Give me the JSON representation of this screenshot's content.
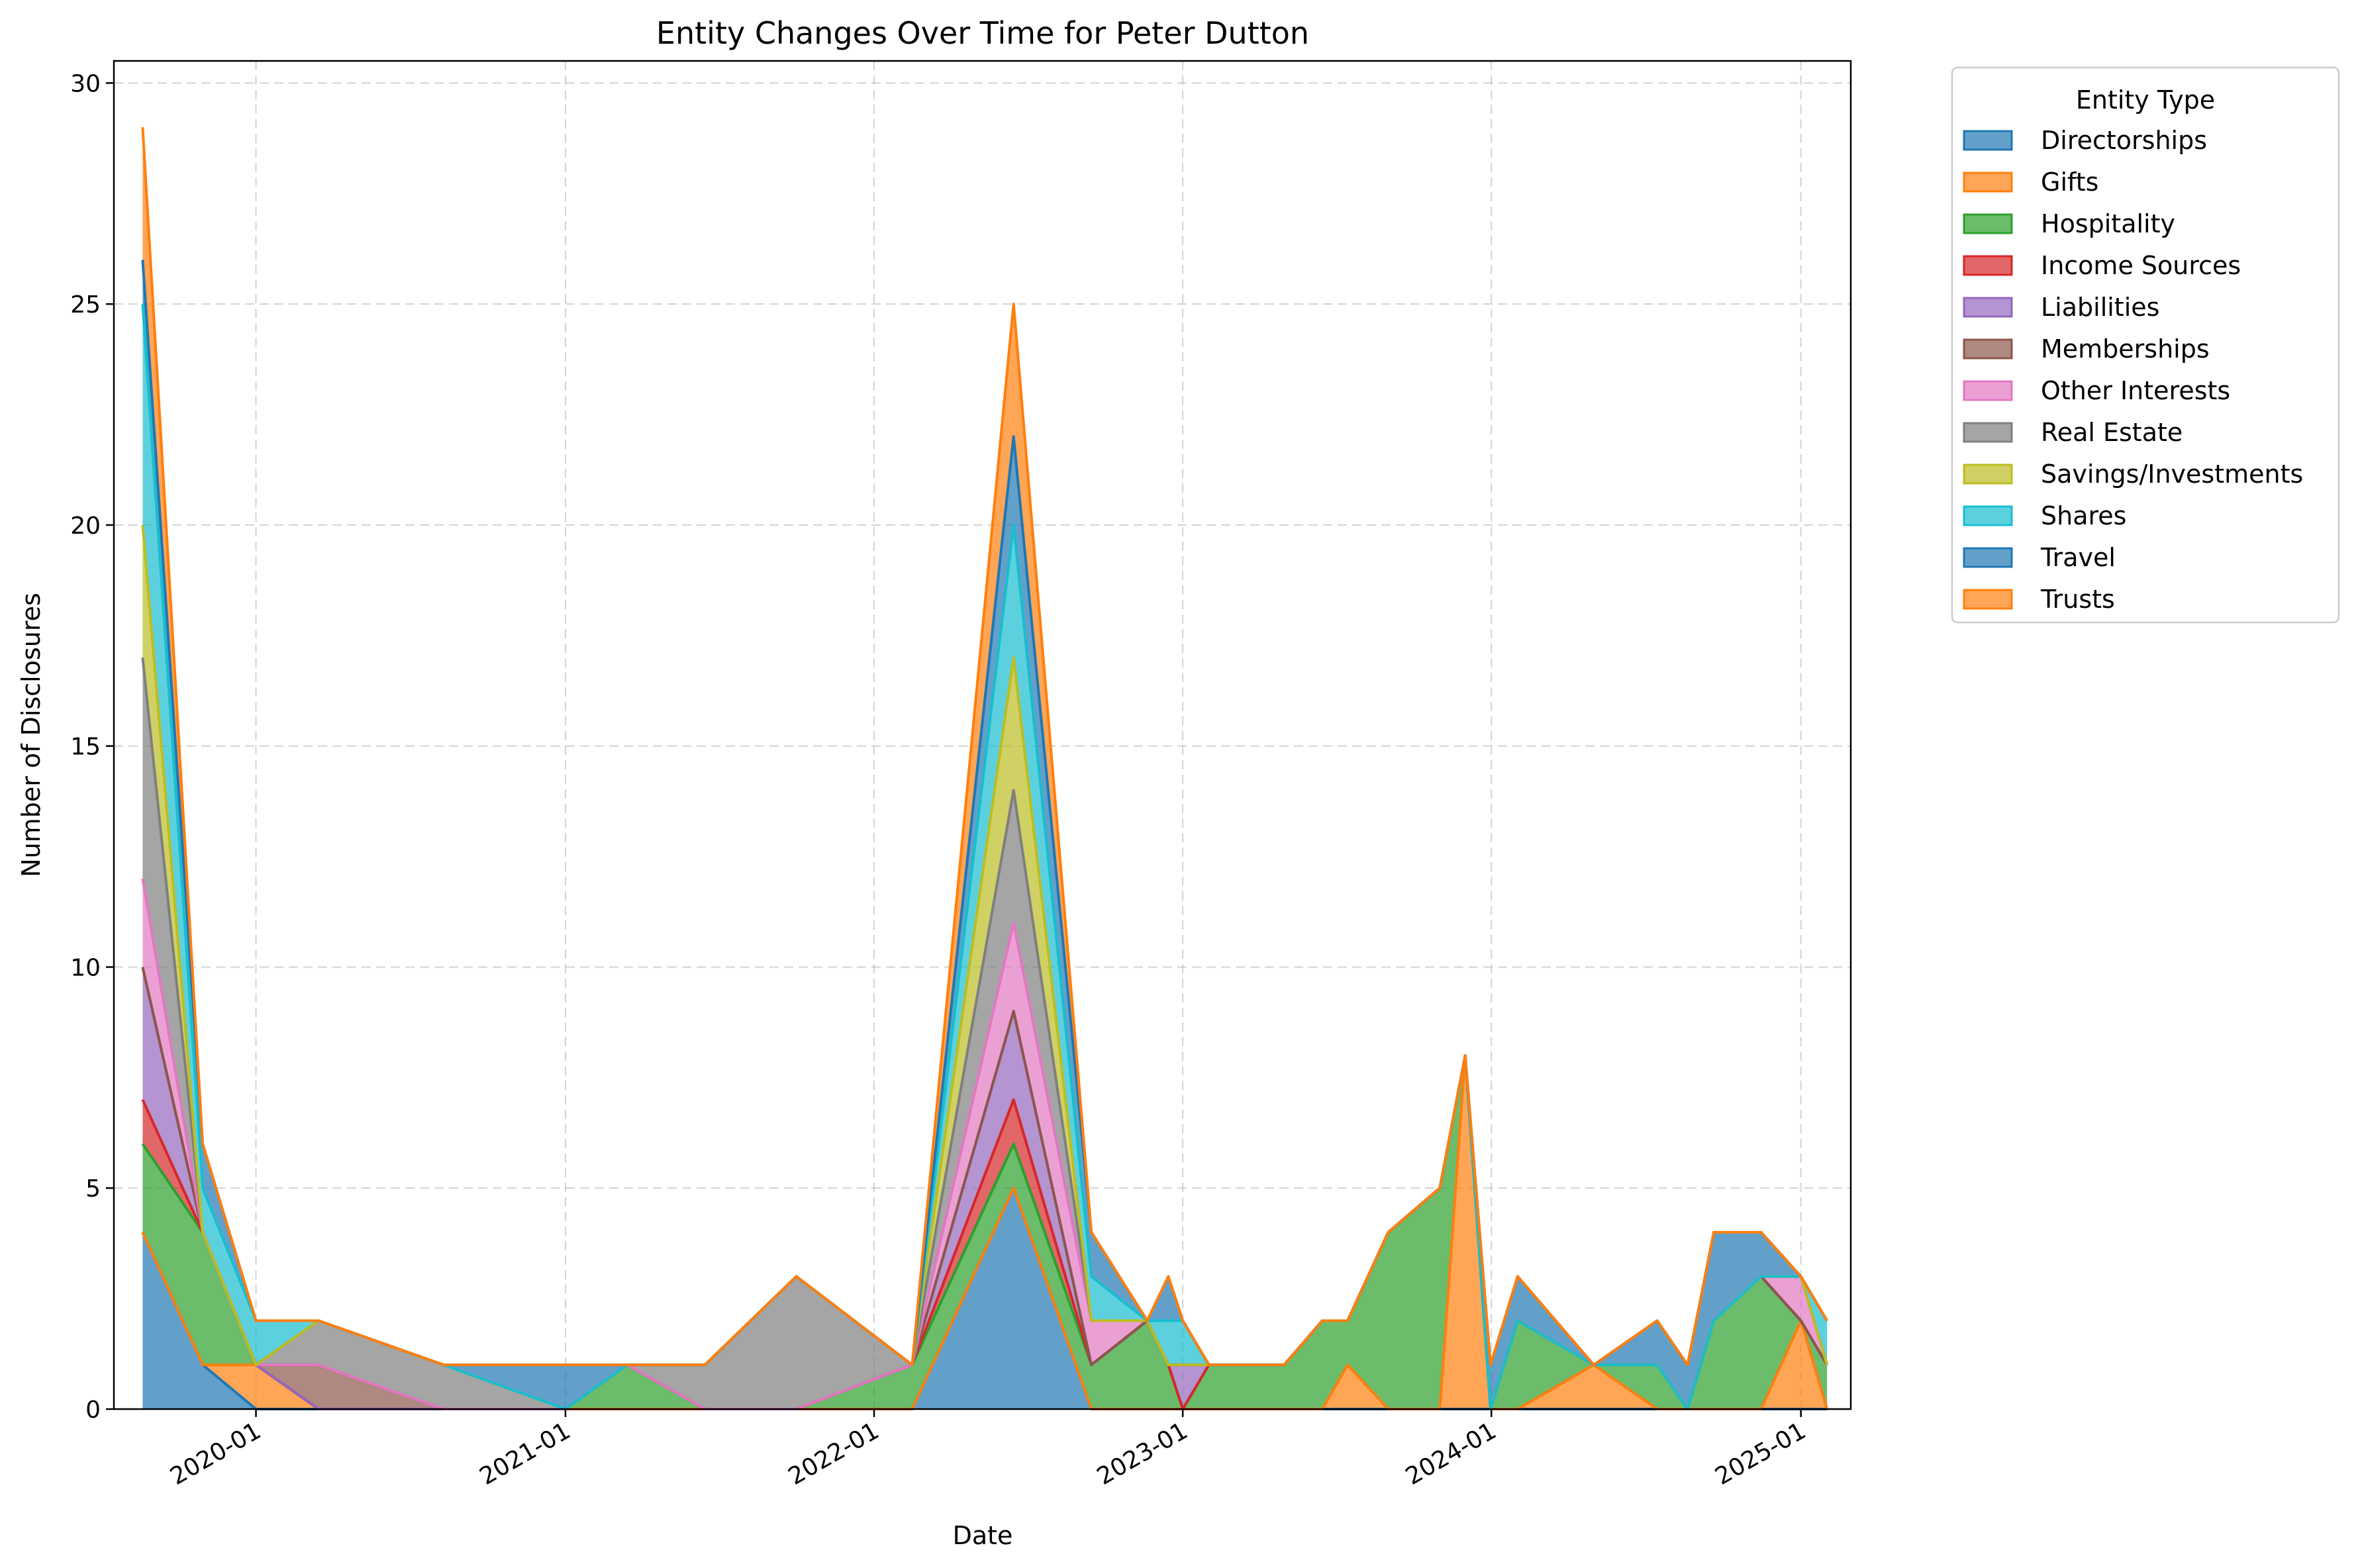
{
  "chart_data": {
    "type": "area",
    "stacked": true,
    "title": "Entity Changes Over Time for Peter Dutton",
    "xlabel": "Date",
    "ylabel": "Number of Disclosures",
    "ylim": [
      0,
      30.5
    ],
    "yticks": [
      0,
      5,
      10,
      15,
      20,
      25,
      30
    ],
    "xlim": [
      "2019-07-17",
      "2025-03-01"
    ],
    "xticks": [
      {
        "date": "2020-01-01",
        "label": "2020-01"
      },
      {
        "date": "2021-01-01",
        "label": "2021-01"
      },
      {
        "date": "2022-01-01",
        "label": "2022-01"
      },
      {
        "date": "2023-01-01",
        "label": "2023-01"
      },
      {
        "date": "2024-01-01",
        "label": "2024-01"
      },
      {
        "date": "2025-01-01",
        "label": "2025-01"
      }
    ],
    "grid": true,
    "legend": {
      "title": "Entity Type",
      "placement": "outside-top-right"
    },
    "x": [
      "2019-08-20",
      "2019-10-30",
      "2020-01-01",
      "2020-03-15",
      "2020-08-10",
      "2021-01-01",
      "2021-03-15",
      "2021-06-15",
      "2021-10-01",
      "2022-02-15",
      "2022-06-15",
      "2022-09-15",
      "2022-11-20",
      "2022-12-15",
      "2023-01-01",
      "2023-02-01",
      "2023-05-01",
      "2023-06-15",
      "2023-07-15",
      "2023-09-01",
      "2023-11-01",
      "2023-12-01",
      "2023-12-31",
      "2024-02-01",
      "2024-05-01",
      "2024-07-15",
      "2024-08-20",
      "2024-09-20",
      "2024-11-15",
      "2025-01-01",
      "2025-02-01"
    ],
    "series": [
      {
        "name": "Directorships",
        "color": "#1f77b4",
        "values": [
          4,
          1,
          0,
          0,
          0,
          0,
          0,
          0,
          0,
          0,
          5,
          0,
          0,
          0,
          0,
          0,
          0,
          0,
          0,
          0,
          0,
          0,
          0,
          0,
          0,
          0,
          0,
          0,
          0,
          0,
          0
        ]
      },
      {
        "name": "Gifts",
        "color": "#ff7f0e",
        "values": [
          0,
          0,
          1,
          0,
          0,
          0,
          0,
          0,
          0,
          0,
          0,
          0,
          0,
          0,
          0,
          0,
          0,
          0,
          1,
          0,
          0,
          8,
          0,
          0,
          1,
          0,
          0,
          0,
          0,
          2,
          0
        ]
      },
      {
        "name": "Hospitality",
        "color": "#2ca02c",
        "values": [
          2,
          3,
          0,
          0,
          0,
          0,
          1,
          0,
          0,
          1,
          1,
          1,
          2,
          1,
          0,
          1,
          1,
          2,
          1,
          4,
          5,
          0,
          0,
          2,
          0,
          1,
          0,
          2,
          3,
          0,
          1
        ]
      },
      {
        "name": "Income Sources",
        "color": "#d62728",
        "values": [
          1,
          0,
          0,
          0,
          0,
          0,
          0,
          0,
          0,
          0,
          1,
          0,
          0,
          0,
          0,
          0,
          0,
          0,
          0,
          0,
          0,
          0,
          0,
          0,
          0,
          0,
          0,
          0,
          0,
          0,
          0
        ]
      },
      {
        "name": "Liabilities",
        "color": "#9467bd",
        "values": [
          3,
          0,
          0,
          0,
          0,
          0,
          0,
          0,
          0,
          0,
          2,
          0,
          0,
          0,
          1,
          0,
          0,
          0,
          0,
          0,
          0,
          0,
          0,
          0,
          0,
          0,
          0,
          0,
          0,
          0,
          0
        ]
      },
      {
        "name": "Memberships",
        "color": "#8c564b",
        "values": [
          0,
          0,
          0,
          1,
          0,
          0,
          0,
          0,
          0,
          0,
          0,
          0,
          0,
          0,
          0,
          0,
          0,
          0,
          0,
          0,
          0,
          0,
          0,
          0,
          0,
          0,
          0,
          0,
          0,
          0,
          0
        ]
      },
      {
        "name": "Other Interests",
        "color": "#e377c2",
        "values": [
          2,
          0,
          0,
          0,
          0,
          0,
          0,
          0,
          0,
          0,
          2,
          1,
          0,
          0,
          0,
          0,
          0,
          0,
          0,
          0,
          0,
          0,
          0,
          0,
          0,
          0,
          0,
          0,
          0,
          1,
          0
        ]
      },
      {
        "name": "Real Estate",
        "color": "#7f7f7f",
        "values": [
          5,
          0,
          0,
          1,
          1,
          0,
          0,
          1,
          3,
          0,
          3,
          0,
          0,
          0,
          0,
          0,
          0,
          0,
          0,
          0,
          0,
          0,
          0,
          0,
          0,
          0,
          0,
          0,
          0,
          0,
          0
        ]
      },
      {
        "name": "Savings/Investments",
        "color": "#bcbd22",
        "values": [
          3,
          0,
          0,
          0,
          0,
          0,
          0,
          0,
          0,
          0,
          3,
          0,
          0,
          0,
          0,
          0,
          0,
          0,
          0,
          0,
          0,
          0,
          0,
          0,
          0,
          0,
          0,
          0,
          0,
          0,
          0
        ]
      },
      {
        "name": "Shares",
        "color": "#17becf",
        "values": [
          5,
          1,
          1,
          0,
          0,
          0,
          0,
          0,
          0,
          0,
          3,
          1,
          0,
          1,
          1,
          0,
          0,
          0,
          0,
          0,
          0,
          0,
          0,
          0,
          0,
          0,
          0,
          0,
          0,
          0,
          1
        ]
      },
      {
        "name": "Travel",
        "color": "#1f77b4",
        "values": [
          1,
          1,
          0,
          0,
          0,
          1,
          0,
          0,
          0,
          0,
          2,
          1,
          0,
          1,
          0,
          0,
          0,
          0,
          0,
          0,
          0,
          0,
          1,
          1,
          0,
          1,
          1,
          2,
          1,
          0,
          0
        ]
      },
      {
        "name": "Trusts",
        "color": "#ff7f0e",
        "values": [
          3,
          0,
          0,
          0,
          0,
          0,
          0,
          0,
          0,
          0,
          3,
          0,
          0,
          0,
          0,
          0,
          0,
          0,
          0,
          0,
          0,
          0,
          0,
          0,
          0,
          0,
          0,
          0,
          0,
          0,
          0
        ]
      }
    ]
  }
}
